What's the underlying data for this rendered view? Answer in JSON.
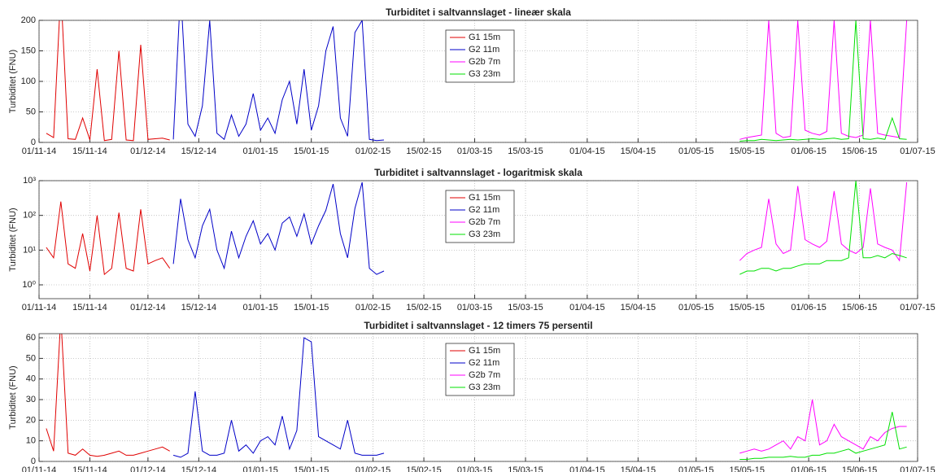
{
  "chart_data": [
    {
      "type": "line",
      "title": "Turbiditet i saltvannslaget - lineær skala",
      "y_label": "Turbiditet (FNU)",
      "log_scale": false,
      "grid": true,
      "legend": "top-center",
      "xlim": [
        "2014-11-01",
        "2015-07-01"
      ],
      "xticks": [
        {
          "value": "2014-11-01",
          "label": "01/11-14"
        },
        {
          "value": "2014-11-15",
          "label": "15/11-14"
        },
        {
          "value": "2014-12-01",
          "label": "01/12-14"
        },
        {
          "value": "2014-12-15",
          "label": "15/12-14"
        },
        {
          "value": "2015-01-01",
          "label": "01/01-15"
        },
        {
          "value": "2015-01-15",
          "label": "15/01-15"
        },
        {
          "value": "2015-02-01",
          "label": "01/02-15"
        },
        {
          "value": "2015-02-15",
          "label": "15/02-15"
        },
        {
          "value": "2015-03-01",
          "label": "01/03-15"
        },
        {
          "value": "2015-03-15",
          "label": "15/03-15"
        },
        {
          "value": "2015-04-01",
          "label": "01/04-15"
        },
        {
          "value": "2015-04-15",
          "label": "15/04-15"
        },
        {
          "value": "2015-05-01",
          "label": "01/05-15"
        },
        {
          "value": "2015-05-15",
          "label": "15/05-15"
        },
        {
          "value": "2015-06-01",
          "label": "01/06-15"
        },
        {
          "value": "2015-06-15",
          "label": "15/06-15"
        },
        {
          "value": "2015-07-01",
          "label": "01/07-15"
        }
      ],
      "ylim": [
        0,
        200
      ],
      "yticks": [
        0,
        50,
        100,
        150,
        200
      ],
      "series": [
        {
          "name": "G1 15m",
          "color": "#e00000",
          "x": [
            "2014-11-03",
            "2014-11-05",
            "2014-11-07",
            "2014-11-09",
            "2014-11-11",
            "2014-11-13",
            "2014-11-15",
            "2014-11-17",
            "2014-11-19",
            "2014-11-21",
            "2014-11-23",
            "2014-11-25",
            "2014-11-27",
            "2014-11-29",
            "2014-12-01",
            "2014-12-03",
            "2014-12-05",
            "2014-12-07"
          ],
          "values": [
            15,
            8,
            250,
            6,
            5,
            40,
            4,
            120,
            3,
            5,
            150,
            4,
            3,
            160,
            5,
            6,
            7,
            4
          ]
        },
        {
          "name": "G2 11m",
          "color": "#0000c8",
          "x": [
            "2014-12-08",
            "2014-12-10",
            "2014-12-12",
            "2014-12-14",
            "2014-12-16",
            "2014-12-18",
            "2014-12-20",
            "2014-12-22",
            "2014-12-24",
            "2014-12-26",
            "2014-12-28",
            "2014-12-30",
            "2015-01-01",
            "2015-01-03",
            "2015-01-05",
            "2015-01-07",
            "2015-01-09",
            "2015-01-11",
            "2015-01-13",
            "2015-01-15",
            "2015-01-17",
            "2015-01-19",
            "2015-01-21",
            "2015-01-23",
            "2015-01-25",
            "2015-01-27",
            "2015-01-29",
            "2015-01-31",
            "2015-02-02",
            "2015-02-04"
          ],
          "values": [
            5,
            250,
            30,
            10,
            60,
            200,
            15,
            5,
            45,
            10,
            30,
            80,
            20,
            40,
            15,
            70,
            100,
            30,
            120,
            20,
            60,
            150,
            190,
            40,
            10,
            180,
            200,
            5,
            3,
            4
          ]
        },
        {
          "name": "G2b 7m",
          "color": "#ff00ff",
          "x": [
            "2015-05-13",
            "2015-05-15",
            "2015-05-17",
            "2015-05-19",
            "2015-05-21",
            "2015-05-23",
            "2015-05-25",
            "2015-05-27",
            "2015-05-29",
            "2015-05-31",
            "2015-06-02",
            "2015-06-04",
            "2015-06-06",
            "2015-06-08",
            "2015-06-10",
            "2015-06-12",
            "2015-06-14",
            "2015-06-16",
            "2015-06-18",
            "2015-06-20",
            "2015-06-22",
            "2015-06-24",
            "2015-06-26",
            "2015-06-28"
          ],
          "values": [
            5,
            8,
            10,
            12,
            200,
            15,
            8,
            10,
            200,
            20,
            15,
            12,
            18,
            200,
            15,
            10,
            8,
            12,
            200,
            15,
            12,
            10,
            8,
            200
          ]
        },
        {
          "name": "G3 23m",
          "color": "#00e000",
          "x": [
            "2015-05-13",
            "2015-05-15",
            "2015-05-17",
            "2015-05-19",
            "2015-05-21",
            "2015-05-23",
            "2015-05-25",
            "2015-05-27",
            "2015-05-29",
            "2015-05-31",
            "2015-06-02",
            "2015-06-04",
            "2015-06-06",
            "2015-06-08",
            "2015-06-10",
            "2015-06-12",
            "2015-06-14",
            "2015-06-16",
            "2015-06-18",
            "2015-06-20",
            "2015-06-22",
            "2015-06-24",
            "2015-06-26",
            "2015-06-28"
          ],
          "values": [
            2,
            3,
            3,
            5,
            4,
            3,
            4,
            5,
            4,
            5,
            6,
            5,
            6,
            7,
            5,
            6,
            200,
            6,
            5,
            7,
            5,
            40,
            6,
            5
          ]
        }
      ]
    },
    {
      "type": "line",
      "title": "Turbiditet i saltvannslaget - logaritmisk skala",
      "y_label": "Turbiditet (FNU)",
      "log_scale": true,
      "grid": true,
      "legend": "top-center",
      "xlim": [
        "2014-11-01",
        "2015-07-01"
      ],
      "xticks": [
        {
          "value": "2014-11-01",
          "label": "01/11-14"
        },
        {
          "value": "2014-11-15",
          "label": "15/11-14"
        },
        {
          "value": "2014-12-01",
          "label": "01/12-14"
        },
        {
          "value": "2014-12-15",
          "label": "15/12-14"
        },
        {
          "value": "2015-01-01",
          "label": "01/01-15"
        },
        {
          "value": "2015-01-15",
          "label": "15/01-15"
        },
        {
          "value": "2015-02-01",
          "label": "01/02-15"
        },
        {
          "value": "2015-02-15",
          "label": "15/02-15"
        },
        {
          "value": "2015-03-01",
          "label": "01/03-15"
        },
        {
          "value": "2015-03-15",
          "label": "15/03-15"
        },
        {
          "value": "2015-04-01",
          "label": "01/04-15"
        },
        {
          "value": "2015-04-15",
          "label": "15/04-15"
        },
        {
          "value": "2015-05-01",
          "label": "01/05-15"
        },
        {
          "value": "2015-05-15",
          "label": "15/05-15"
        },
        {
          "value": "2015-06-01",
          "label": "01/06-15"
        },
        {
          "value": "2015-06-15",
          "label": "15/06-15"
        },
        {
          "value": "2015-07-01",
          "label": "01/07-15"
        }
      ],
      "ylim": [
        0.4,
        1000
      ],
      "yticks": [
        {
          "value": 1,
          "label": "10⁰"
        },
        {
          "value": 10,
          "label": "10¹"
        },
        {
          "value": 100,
          "label": "10²"
        },
        {
          "value": 1000,
          "label": "10³"
        }
      ],
      "series": [
        {
          "name": "G1 15m",
          "color": "#e00000",
          "x": [
            "2014-11-03",
            "2014-11-05",
            "2014-11-07",
            "2014-11-09",
            "2014-11-11",
            "2014-11-13",
            "2014-11-15",
            "2014-11-17",
            "2014-11-19",
            "2014-11-21",
            "2014-11-23",
            "2014-11-25",
            "2014-11-27",
            "2014-11-29",
            "2014-12-01",
            "2014-12-03",
            "2014-12-05",
            "2014-12-07"
          ],
          "values": [
            12,
            6,
            250,
            4,
            3,
            30,
            2.5,
            100,
            2,
            3,
            120,
            3,
            2.5,
            150,
            4,
            5,
            6,
            3
          ]
        },
        {
          "name": "G2 11m",
          "color": "#0000c8",
          "x": [
            "2014-12-08",
            "2014-12-10",
            "2014-12-12",
            "2014-12-14",
            "2014-12-16",
            "2014-12-18",
            "2014-12-20",
            "2014-12-22",
            "2014-12-24",
            "2014-12-26",
            "2014-12-28",
            "2014-12-30",
            "2015-01-01",
            "2015-01-03",
            "2015-01-05",
            "2015-01-07",
            "2015-01-09",
            "2015-01-11",
            "2015-01-13",
            "2015-01-15",
            "2015-01-17",
            "2015-01-19",
            "2015-01-21",
            "2015-01-23",
            "2015-01-25",
            "2015-01-27",
            "2015-01-29",
            "2015-01-31",
            "2015-02-02",
            "2015-02-04"
          ],
          "values": [
            4,
            300,
            20,
            6,
            50,
            150,
            10,
            3,
            35,
            6,
            25,
            70,
            15,
            30,
            10,
            60,
            90,
            25,
            110,
            15,
            50,
            140,
            800,
            30,
            6,
            160,
            900,
            3,
            2,
            2.5
          ]
        },
        {
          "name": "G2b 7m",
          "color": "#ff00ff",
          "x": [
            "2015-05-13",
            "2015-05-15",
            "2015-05-17",
            "2015-05-19",
            "2015-05-21",
            "2015-05-23",
            "2015-05-25",
            "2015-05-27",
            "2015-05-29",
            "2015-05-31",
            "2015-06-02",
            "2015-06-04",
            "2015-06-06",
            "2015-06-08",
            "2015-06-10",
            "2015-06-12",
            "2015-06-14",
            "2015-06-16",
            "2015-06-18",
            "2015-06-20",
            "2015-06-22",
            "2015-06-24",
            "2015-06-26",
            "2015-06-28"
          ],
          "values": [
            5,
            8,
            10,
            12,
            300,
            15,
            8,
            10,
            700,
            20,
            15,
            12,
            18,
            500,
            15,
            10,
            8,
            12,
            600,
            15,
            12,
            10,
            5,
            900
          ]
        },
        {
          "name": "G3 23m",
          "color": "#00e000",
          "x": [
            "2015-05-13",
            "2015-05-15",
            "2015-05-17",
            "2015-05-19",
            "2015-05-21",
            "2015-05-23",
            "2015-05-25",
            "2015-05-27",
            "2015-05-29",
            "2015-05-31",
            "2015-06-02",
            "2015-06-04",
            "2015-06-06",
            "2015-06-08",
            "2015-06-10",
            "2015-06-12",
            "2015-06-14",
            "2015-06-16",
            "2015-06-18",
            "2015-06-20",
            "2015-06-22",
            "2015-06-24",
            "2015-06-26",
            "2015-06-28"
          ],
          "values": [
            2,
            2.5,
            2.5,
            3,
            3,
            2.5,
            3,
            3,
            3.5,
            4,
            4,
            4,
            5,
            5,
            5,
            6,
            1000,
            6,
            6,
            7,
            6,
            8,
            7,
            6
          ]
        }
      ]
    },
    {
      "type": "line",
      "title": "Turbiditet i saltvannslaget - 12 timers 75 persentil",
      "y_label": "Turbiditet (FNU)",
      "log_scale": false,
      "grid": true,
      "legend": "top-center",
      "xlim": [
        "2014-11-01",
        "2015-07-01"
      ],
      "xticks": [
        {
          "value": "2014-11-01",
          "label": "01/11-14"
        },
        {
          "value": "2014-11-15",
          "label": "15/11-14"
        },
        {
          "value": "2014-12-01",
          "label": "01/12-14"
        },
        {
          "value": "2014-12-15",
          "label": "15/12-14"
        },
        {
          "value": "2015-01-01",
          "label": "01/01-15"
        },
        {
          "value": "2015-01-15",
          "label": "15/01-15"
        },
        {
          "value": "2015-02-01",
          "label": "01/02-15"
        },
        {
          "value": "2015-02-15",
          "label": "15/02-15"
        },
        {
          "value": "2015-03-01",
          "label": "01/03-15"
        },
        {
          "value": "2015-03-15",
          "label": "15/03-15"
        },
        {
          "value": "2015-04-01",
          "label": "01/04-15"
        },
        {
          "value": "2015-04-15",
          "label": "15/04-15"
        },
        {
          "value": "2015-05-01",
          "label": "01/05-15"
        },
        {
          "value": "2015-05-15",
          "label": "15/05-15"
        },
        {
          "value": "2015-06-01",
          "label": "01/06-15"
        },
        {
          "value": "2015-06-15",
          "label": "15/06-15"
        },
        {
          "value": "2015-07-01",
          "label": "01/07-15"
        }
      ],
      "ylim": [
        0,
        62
      ],
      "yticks": [
        0,
        10,
        20,
        30,
        40,
        50,
        60
      ],
      "series": [
        {
          "name": "G1 15m",
          "color": "#e00000",
          "x": [
            "2014-11-03",
            "2014-11-05",
            "2014-11-07",
            "2014-11-09",
            "2014-11-11",
            "2014-11-13",
            "2014-11-15",
            "2014-11-17",
            "2014-11-19",
            "2014-11-21",
            "2014-11-23",
            "2014-11-25",
            "2014-11-27",
            "2014-11-29",
            "2014-12-01",
            "2014-12-03",
            "2014-12-05",
            "2014-12-07"
          ],
          "values": [
            16,
            5,
            70,
            4,
            3,
            6,
            3,
            2.5,
            3,
            4,
            5,
            3,
            3,
            4,
            5,
            6,
            7,
            5
          ]
        },
        {
          "name": "G2 11m",
          "color": "#0000c8",
          "x": [
            "2014-12-08",
            "2014-12-10",
            "2014-12-12",
            "2014-12-14",
            "2014-12-16",
            "2014-12-18",
            "2014-12-20",
            "2014-12-22",
            "2014-12-24",
            "2014-12-26",
            "2014-12-28",
            "2014-12-30",
            "2015-01-01",
            "2015-01-03",
            "2015-01-05",
            "2015-01-07",
            "2015-01-09",
            "2015-01-11",
            "2015-01-13",
            "2015-01-15",
            "2015-01-17",
            "2015-01-19",
            "2015-01-21",
            "2015-01-23",
            "2015-01-25",
            "2015-01-27",
            "2015-01-29",
            "2015-01-31",
            "2015-02-02",
            "2015-02-04"
          ],
          "values": [
            3,
            2,
            4,
            34,
            5,
            3,
            3,
            4,
            20,
            5,
            8,
            4,
            10,
            12,
            8,
            22,
            6,
            15,
            60,
            58,
            12,
            10,
            8,
            6,
            20,
            4,
            3,
            3,
            3,
            4
          ]
        },
        {
          "name": "G2b 7m",
          "color": "#ff00ff",
          "x": [
            "2015-05-13",
            "2015-05-15",
            "2015-05-17",
            "2015-05-19",
            "2015-05-21",
            "2015-05-23",
            "2015-05-25",
            "2015-05-27",
            "2015-05-29",
            "2015-05-31",
            "2015-06-02",
            "2015-06-04",
            "2015-06-06",
            "2015-06-08",
            "2015-06-10",
            "2015-06-12",
            "2015-06-14",
            "2015-06-16",
            "2015-06-18",
            "2015-06-20",
            "2015-06-22",
            "2015-06-24",
            "2015-06-26",
            "2015-06-28"
          ],
          "values": [
            4,
            5,
            6,
            5,
            6,
            8,
            10,
            6,
            12,
            10,
            30,
            8,
            10,
            18,
            12,
            10,
            8,
            6,
            12,
            10,
            14,
            16,
            17,
            17
          ]
        },
        {
          "name": "G3 23m",
          "color": "#00e000",
          "x": [
            "2015-05-13",
            "2015-05-15",
            "2015-05-17",
            "2015-05-19",
            "2015-05-21",
            "2015-05-23",
            "2015-05-25",
            "2015-05-27",
            "2015-05-29",
            "2015-05-31",
            "2015-06-02",
            "2015-06-04",
            "2015-06-06",
            "2015-06-08",
            "2015-06-10",
            "2015-06-12",
            "2015-06-14",
            "2015-06-16",
            "2015-06-18",
            "2015-06-20",
            "2015-06-22",
            "2015-06-24",
            "2015-06-26",
            "2015-06-28"
          ],
          "values": [
            1,
            1,
            1.5,
            1.5,
            2,
            2,
            2,
            2.5,
            2,
            2,
            3,
            3,
            4,
            4,
            5,
            6,
            4,
            5,
            6,
            7,
            8,
            24,
            6,
            7
          ]
        }
      ]
    }
  ]
}
